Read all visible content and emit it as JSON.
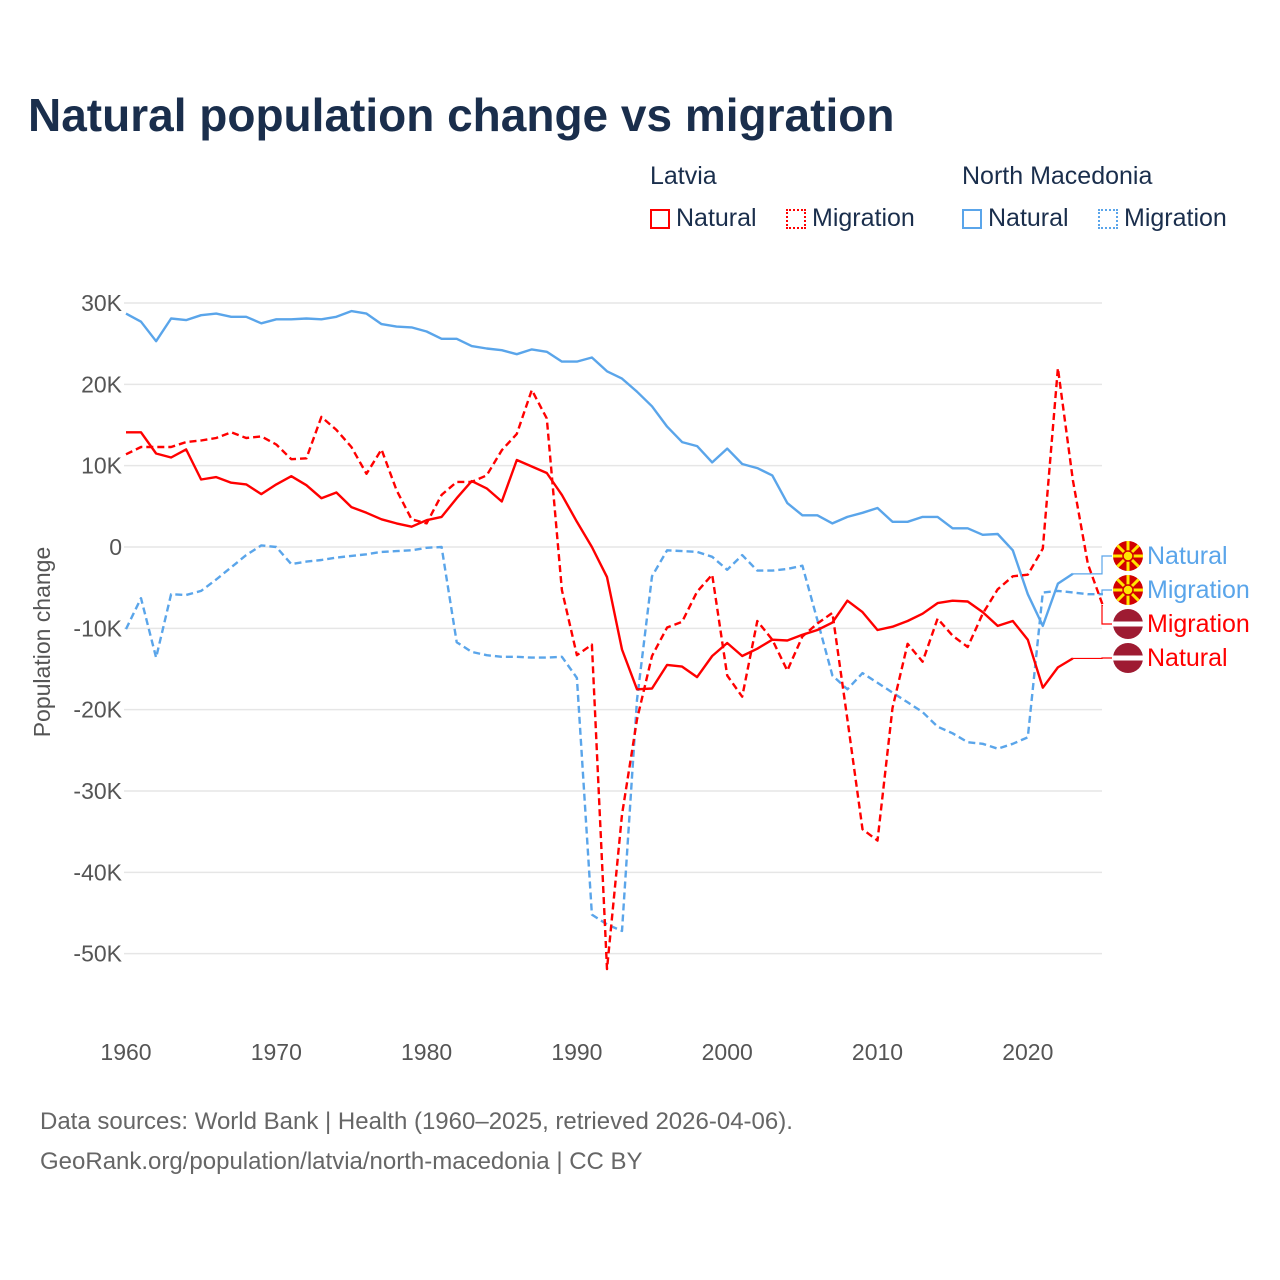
{
  "title": "Natural population change vs migration",
  "legend": {
    "groups": [
      {
        "country": "Latvia",
        "color": "#ff0000",
        "items": [
          "Natural",
          "Migration"
        ]
      },
      {
        "country": "North Macedonia",
        "color": "#5aa5ea",
        "items": [
          "Natural",
          "Migration"
        ]
      }
    ]
  },
  "footer": {
    "line1": "Data sources: World Bank | Health (1960–2025, retrieved 2026-04-06).",
    "line2": "GeoRank.org/population/latvia/north-macedonia | CC BY"
  },
  "chart_data": {
    "type": "line",
    "title": "Natural population change vs migration",
    "xlabel": "",
    "ylabel": "Population change",
    "xlim": [
      1960,
      2025
    ],
    "ylim": [
      -50000,
      30000
    ],
    "x_ticks": [
      "1960",
      "1970",
      "1980",
      "1990",
      "2000",
      "2010",
      "2020"
    ],
    "y_ticks": [
      {
        "v": 30000,
        "l": "30K"
      },
      {
        "v": 20000,
        "l": "20K"
      },
      {
        "v": 10000,
        "l": "10K"
      },
      {
        "v": 0,
        "l": "0"
      },
      {
        "v": -10000,
        "l": "-10K"
      },
      {
        "v": -20000,
        "l": "-20K"
      },
      {
        "v": -30000,
        "l": "-30K"
      },
      {
        "v": -40000,
        "l": "-40K"
      },
      {
        "v": -50000,
        "l": "-50K"
      }
    ],
    "grid": true,
    "start_year": 1960,
    "units": "thousands",
    "series": [
      {
        "name": "North Macedonia Natural",
        "end_label": "Natural",
        "flag": "north-macedonia",
        "color": "#5aa5ea",
        "dash": false,
        "values": [
          28.7,
          27.7,
          25.3,
          28.1,
          27.9,
          28.5,
          28.7,
          28.3,
          28.3,
          27.5,
          28.0,
          28.0,
          28.1,
          28.0,
          28.3,
          29.0,
          28.7,
          27.4,
          27.1,
          27.0,
          26.5,
          25.6,
          25.6,
          24.7,
          24.4,
          24.2,
          23.7,
          24.3,
          24.0,
          22.8,
          22.8,
          23.3,
          21.6,
          20.7,
          19.1,
          17.3,
          14.8,
          12.9,
          12.4,
          10.4,
          12.1,
          10.2,
          9.7,
          8.8,
          5.4,
          3.9,
          3.9,
          2.9,
          3.7,
          4.2,
          4.8,
          3.1,
          3.1,
          3.7,
          3.7,
          2.3,
          2.3,
          1.5,
          1.6,
          -0.4,
          -5.8,
          -9.7,
          -4.5,
          -3.3
        ]
      },
      {
        "name": "North Macedonia Migration",
        "end_label": "Migration",
        "flag": "north-macedonia",
        "color": "#5aa5ea",
        "dash": true,
        "values": [
          -10.1,
          -6.3,
          -13.6,
          -5.8,
          -5.9,
          -5.4,
          -4.0,
          -2.5,
          -1.0,
          0.2,
          0,
          -2.1,
          -1.8,
          -1.6,
          -1.3,
          -1.1,
          -0.9,
          -0.6,
          -0.5,
          -0.4,
          -0.1,
          0,
          -11.7,
          -12.9,
          -13.3,
          -13.5,
          -13.5,
          -13.6,
          -13.6,
          -13.5,
          -16.1,
          -45.2,
          -46.4,
          -47.2,
          -18.8,
          -3.6,
          -0.4,
          -0.5,
          -0.6,
          -1.2,
          -2.8,
          -1.0,
          -2.9,
          -2.9,
          -2.7,
          -2.3,
          -9.0,
          -15.8,
          -17.5,
          -15.5,
          -16.7,
          -17.9,
          -19.1,
          -20.3,
          -22.1,
          -22.9,
          -24.0,
          -24.2,
          -24.8,
          -24.2,
          -23.4,
          -5.6,
          -5.4,
          -5.6,
          -5.8,
          -5.8
        ]
      },
      {
        "name": "Latvia Migration",
        "end_label": "Migration",
        "flag": "latvia",
        "color": "#ff0000",
        "dash": true,
        "values": [
          11.4,
          12.3,
          12.3,
          12.3,
          12.9,
          13.1,
          13.4,
          14.1,
          13.4,
          13.6,
          12.6,
          10.8,
          10.9,
          16.0,
          14.4,
          12.3,
          9.0,
          12.0,
          7.0,
          3.4,
          2.9,
          6.4,
          8.0,
          8.0,
          8.8,
          11.9,
          13.9,
          19.3,
          15.8,
          -5.3,
          -13.3,
          -12.0,
          -51.9,
          -32.9,
          -21.2,
          -13.4,
          -9.9,
          -9.2,
          -5.5,
          -3.4,
          -15.8,
          -18.4,
          -9.1,
          -11.4,
          -15.2,
          -11.0,
          -9.4,
          -8.1,
          -21.2,
          -34.7,
          -36.1,
          -19.8,
          -11.9,
          -14.1,
          -8.8,
          -10.9,
          -12.3,
          -8.2,
          -5.2,
          -3.6,
          -3.4,
          -0.2,
          22.0,
          8.2,
          -2.1,
          -7.2
        ]
      },
      {
        "name": "Latvia Natural",
        "end_label": "Natural",
        "flag": "latvia",
        "color": "#ff0000",
        "dash": false,
        "values": [
          14.1,
          14.1,
          11.5,
          11.0,
          12.0,
          8.3,
          8.6,
          7.9,
          7.7,
          6.5,
          7.7,
          8.7,
          7.6,
          6.0,
          6.7,
          4.9,
          4.2,
          3.4,
          2.9,
          2.5,
          3.3,
          3.7,
          6.0,
          8.1,
          7.2,
          5.6,
          10.7,
          9.9,
          9.1,
          6.4,
          3.1,
          0,
          -3.7,
          -12.6,
          -17.5,
          -17.4,
          -14.5,
          -14.7,
          -16.0,
          -13.4,
          -11.8,
          -13.4,
          -12.5,
          -11.4,
          -11.5,
          -10.8,
          -10.2,
          -9.3,
          -6.6,
          -8.0,
          -10.2,
          -9.8,
          -9.1,
          -8.2,
          -6.9,
          -6.6,
          -6.7,
          -8.0,
          -9.7,
          -9.1,
          -11.4,
          -17.3,
          -14.8,
          -13.7
        ]
      }
    ]
  }
}
